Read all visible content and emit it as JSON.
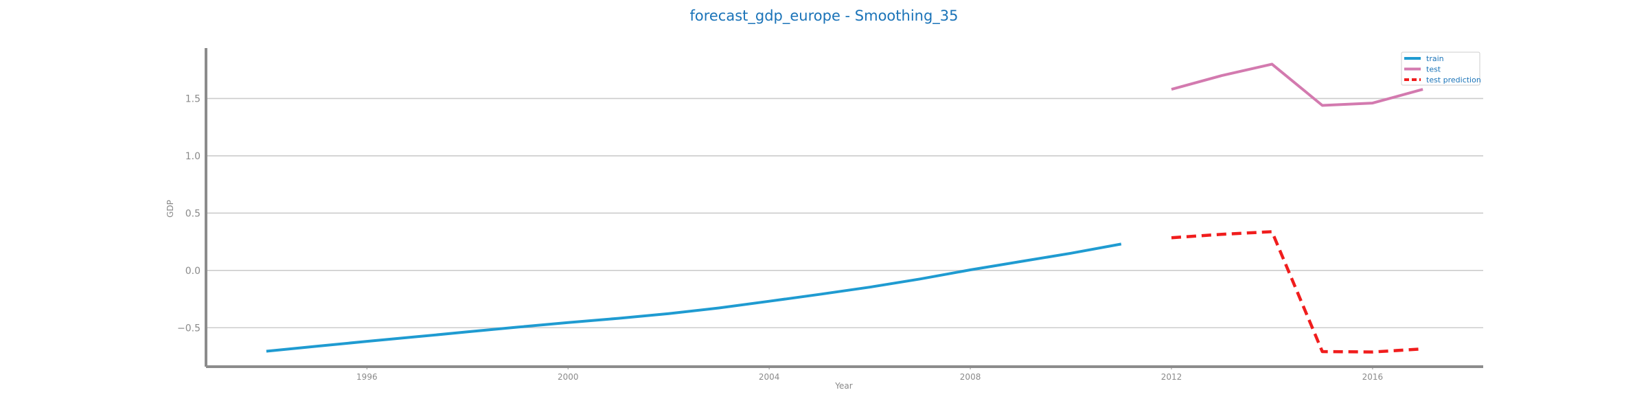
{
  "chart_data": {
    "type": "line",
    "title": "forecast_gdp_europe - Smoothing_35",
    "xlabel": "Year",
    "ylabel": "GDP",
    "xlim": [
      1992.8,
      2018.2
    ],
    "ylim": [
      -0.84,
      1.94
    ],
    "x_ticks": [
      1996,
      2000,
      2004,
      2008,
      2012,
      2016
    ],
    "y_ticks": [
      -0.5,
      0.0,
      0.5,
      1.0,
      1.5
    ],
    "y_tick_labels": [
      "−0.5",
      "0.0",
      "0.5",
      "1.0",
      "1.5"
    ],
    "grid": "horizontal",
    "legend_position": "top-right",
    "series": [
      {
        "name": "train",
        "color": "#1f9bd1",
        "style": "solid",
        "x": [
          1994,
          1995,
          1996,
          1997,
          1998,
          1999,
          2000,
          2001,
          2002,
          2003,
          2004,
          2005,
          2006,
          2007,
          2008,
          2009,
          2010,
          2011
        ],
        "y": [
          -0.705,
          -0.662,
          -0.619,
          -0.578,
          -0.536,
          -0.495,
          -0.455,
          -0.418,
          -0.377,
          -0.328,
          -0.269,
          -0.209,
          -0.146,
          -0.075,
          0.005,
          0.077,
          0.15,
          0.23
        ]
      },
      {
        "name": "test",
        "color": "#d37aaf",
        "style": "solid",
        "x": [
          2012,
          2013,
          2014,
          2015,
          2016,
          2017
        ],
        "y": [
          1.58,
          1.7,
          1.8,
          1.44,
          1.46,
          1.58
        ]
      },
      {
        "name": "test prediction",
        "color": "#f01d1d",
        "style": "dashed",
        "x": [
          2012,
          2013,
          2014,
          2015,
          2016,
          2017
        ],
        "y": [
          0.285,
          0.315,
          0.338,
          -0.708,
          -0.712,
          -0.685
        ]
      }
    ]
  }
}
